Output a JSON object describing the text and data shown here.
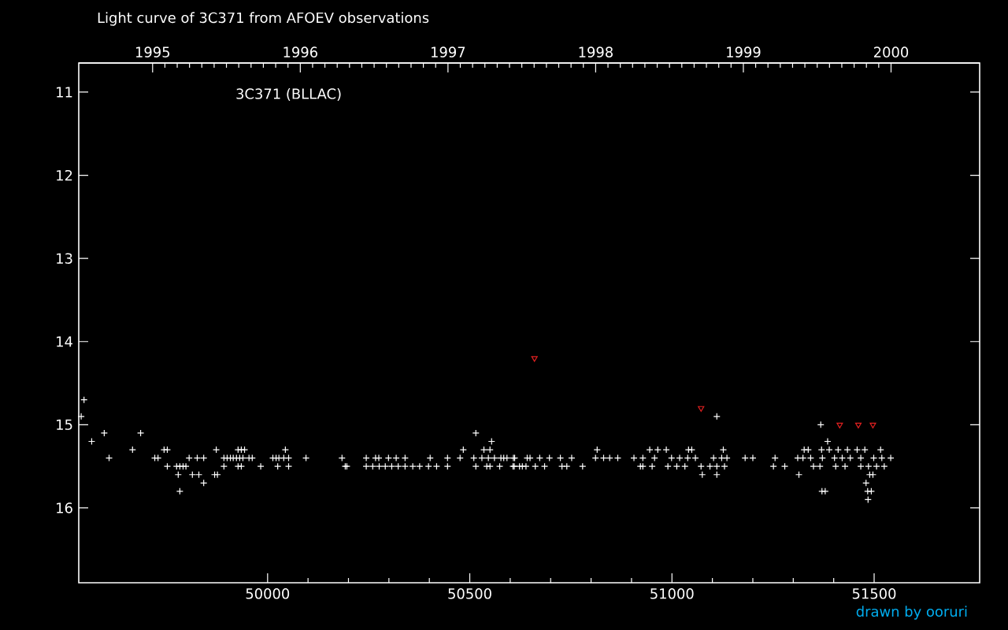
{
  "chart_data": {
    "type": "scatter",
    "title": "Light curve of 3C371 from AFOEV observations",
    "annotations": [
      "3C371 (BLLAC)",
      "drawn by ooruri"
    ],
    "xlim": [
      49533,
      51761
    ],
    "xticks": [
      50000,
      50500,
      51000,
      51500
    ],
    "x2lim": [
      1994.5,
      2000.6
    ],
    "x2ticks": [
      1995,
      1996,
      1997,
      1998,
      1999,
      2000
    ],
    "ylim": [
      16.9,
      10.65
    ],
    "yticks": [
      11,
      12,
      13,
      14,
      15,
      16
    ],
    "grid": false,
    "series": [
      {
        "color": "#ffffff",
        "marker": "cross",
        "x": [
          49546,
          49539,
          49565,
          49596,
          49608,
          49666,
          49686,
          49721,
          49729,
          49744,
          49752,
          49752,
          49775,
          49783,
          49791,
          49798,
          49779,
          49783,
          49806,
          49814,
          49830,
          49826,
          49842,
          49842,
          49869,
          49876,
          49873,
          49892,
          49900,
          49908,
          49915,
          49923,
          49931,
          49939,
          49892,
          49927,
          49935,
          49943,
          49927,
          49935,
          49954,
          49962,
          49983,
          50013,
          50021,
          50028,
          50025,
          50044,
          50040,
          50052,
          50052,
          50095,
          50184,
          50192,
          50196,
          50244,
          50244,
          50260,
          50276,
          50291,
          50307,
          50323,
          50267,
          50275,
          50299,
          50318,
          50340,
          50340,
          50359,
          50376,
          50398,
          50402,
          50418,
          50445,
          50445,
          50476,
          50484,
          50515,
          50515,
          50510,
          50535,
          50550,
          50554,
          50530,
          50546,
          50561,
          50577,
          50592,
          50608,
          50542,
          50550,
          50574,
          50610,
          50630,
          50649,
          50584,
          50611,
          50642,
          50673,
          50697,
          50724,
          50752,
          50607,
          50623,
          50639,
          50662,
          50685,
          50728,
          50740,
          50779,
          50815,
          50811,
          50831,
          50846,
          50866,
          50906,
          50922,
          50928,
          50951,
          50928,
          50957,
          50945,
          50965,
          50986,
          50999,
          51019,
          51039,
          51058,
          50990,
          51012,
          51032,
          51041,
          51049,
          51075,
          51111,
          51072,
          51094,
          51111,
          51130,
          51103,
          51123,
          51136,
          51127,
          51111,
          51181,
          51200,
          51255,
          51251,
          51279,
          51314,
          51311,
          51324,
          51343,
          51327,
          51337,
          51350,
          51366,
          51368,
          51371,
          51379,
          51370,
          51389,
          51411,
          51372,
          51402,
          51421,
          51441,
          51467,
          51385,
          51405,
          51428,
          51434,
          51458,
          51477,
          51467,
          51486,
          51506,
          51525,
          51480,
          51484,
          51493,
          51485,
          51489,
          51497,
          51499,
          51519,
          51541,
          51516
        ],
        "values": [
          14.7,
          14.9,
          15.2,
          15.1,
          15.4,
          15.3,
          15.1,
          15.4,
          15.4,
          15.3,
          15.3,
          15.5,
          15.5,
          15.5,
          15.5,
          15.5,
          15.6,
          15.8,
          15.4,
          15.6,
          15.6,
          15.4,
          15.4,
          15.7,
          15.6,
          15.6,
          15.3,
          15.4,
          15.4,
          15.4,
          15.4,
          15.4,
          15.4,
          15.4,
          15.5,
          15.3,
          15.3,
          15.3,
          15.5,
          15.5,
          15.4,
          15.4,
          15.5,
          15.4,
          15.4,
          15.4,
          15.5,
          15.3,
          15.4,
          15.4,
          15.5,
          15.4,
          15.4,
          15.5,
          15.5,
          15.4,
          15.5,
          15.5,
          15.5,
          15.5,
          15.5,
          15.5,
          15.4,
          15.4,
          15.4,
          15.4,
          15.4,
          15.5,
          15.5,
          15.5,
          15.5,
          15.4,
          15.5,
          15.4,
          15.5,
          15.4,
          15.3,
          15.1,
          15.5,
          15.4,
          15.3,
          15.3,
          15.2,
          15.4,
          15.4,
          15.4,
          15.4,
          15.4,
          15.4,
          15.5,
          15.5,
          15.5,
          15.5,
          15.5,
          15.4,
          15.4,
          15.4,
          15.4,
          15.4,
          15.4,
          15.4,
          15.4,
          15.5,
          15.5,
          15.5,
          15.5,
          15.5,
          15.5,
          15.5,
          15.5,
          15.3,
          15.4,
          15.4,
          15.4,
          15.4,
          15.4,
          15.5,
          15.5,
          15.5,
          15.4,
          15.4,
          15.3,
          15.3,
          15.3,
          15.4,
          15.4,
          15.4,
          15.4,
          15.5,
          15.5,
          15.5,
          15.3,
          15.3,
          15.6,
          15.6,
          15.5,
          15.5,
          15.5,
          15.5,
          15.4,
          15.4,
          15.4,
          15.3,
          14.9,
          15.4,
          15.4,
          15.4,
          15.5,
          15.5,
          15.6,
          15.4,
          15.4,
          15.4,
          15.3,
          15.3,
          15.5,
          15.5,
          15.0,
          15.8,
          15.8,
          15.3,
          15.3,
          15.3,
          15.4,
          15.4,
          15.4,
          15.4,
          15.4,
          15.2,
          15.5,
          15.5,
          15.3,
          15.3,
          15.3,
          15.5,
          15.5,
          15.5,
          15.5,
          15.7,
          15.8,
          15.8,
          15.9,
          15.6,
          15.6,
          15.4,
          15.4,
          15.4,
          15.3
        ]
      },
      {
        "color": "#e02020",
        "marker": "triangle",
        "x": [
          50660,
          51072,
          51415,
          51461,
          51497
        ],
        "values": [
          14.2,
          14.8,
          15.0,
          15.0,
          15.0
        ]
      }
    ]
  }
}
